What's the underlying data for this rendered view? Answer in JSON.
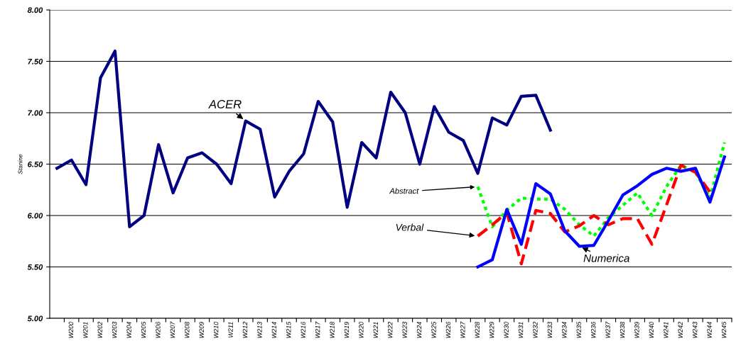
{
  "chart_data": {
    "type": "line",
    "ylabel": "Stanine",
    "categories": [
      null,
      "W200",
      "W201",
      "W202",
      "W203",
      "W204",
      "W205",
      "W206",
      "W207",
      "W208",
      "W209",
      "W210",
      "W211",
      "W212",
      "W213",
      "W214",
      "W215",
      "W216",
      "W217",
      "W218",
      "W219",
      "W220",
      "W221",
      "W222",
      "W223",
      "W224",
      "W225",
      "W226",
      "W227",
      "W228",
      "W229",
      "W230",
      "W231",
      "W232",
      "W233",
      "W234",
      "W235",
      "W236",
      "W237",
      "W238",
      "W239",
      "W240",
      "W241",
      "W242",
      "W243",
      "W244",
      "W245"
    ],
    "series": [
      {
        "name": "ACER",
        "color": "#000080",
        "line_style": "solid",
        "values": [
          6.46,
          6.54,
          6.3,
          7.34,
          7.6,
          5.89,
          6.0,
          6.69,
          6.22,
          6.56,
          6.61,
          6.5,
          6.31,
          6.92,
          6.84,
          6.18,
          6.43,
          6.6,
          7.11,
          6.91,
          6.08,
          6.71,
          6.56,
          7.2,
          7.0,
          6.5,
          7.06,
          6.81,
          6.73,
          6.41,
          6.95,
          6.88,
          7.16,
          7.17,
          6.83,
          null,
          null,
          null,
          null,
          null,
          null,
          null,
          null,
          null,
          null,
          null,
          null
        ]
      },
      {
        "name": "Abstract",
        "color": "#00ff00",
        "line_style": "dotted",
        "values": [
          null,
          null,
          null,
          null,
          null,
          null,
          null,
          null,
          null,
          null,
          null,
          null,
          null,
          null,
          null,
          null,
          null,
          null,
          null,
          null,
          null,
          null,
          null,
          null,
          null,
          null,
          null,
          null,
          null,
          6.28,
          5.89,
          6.05,
          6.17,
          6.16,
          6.16,
          6.06,
          5.91,
          5.8,
          5.98,
          6.1,
          6.22,
          6.0,
          6.28,
          6.49,
          6.42,
          6.17,
          6.71
        ]
      },
      {
        "name": "Verbal",
        "color": "#ff0000",
        "line_style": "dashed",
        "values": [
          null,
          null,
          null,
          null,
          null,
          null,
          null,
          null,
          null,
          null,
          null,
          null,
          null,
          null,
          null,
          null,
          null,
          null,
          null,
          null,
          null,
          null,
          null,
          null,
          null,
          null,
          null,
          null,
          null,
          5.8,
          5.91,
          6.03,
          5.53,
          6.05,
          6.02,
          5.84,
          5.9,
          6.0,
          5.91,
          5.97,
          5.97,
          5.72,
          6.1,
          6.49,
          6.42,
          6.23,
          null
        ]
      },
      {
        "name": "Numerica",
        "color": "#0000ff",
        "line_style": "solid",
        "values": [
          null,
          null,
          null,
          null,
          null,
          null,
          null,
          null,
          null,
          null,
          null,
          null,
          null,
          null,
          null,
          null,
          null,
          null,
          null,
          null,
          null,
          null,
          null,
          null,
          null,
          null,
          null,
          null,
          null,
          5.5,
          5.57,
          6.06,
          5.72,
          6.31,
          6.21,
          5.85,
          5.7,
          5.71,
          5.95,
          6.2,
          6.29,
          6.4,
          6.46,
          6.43,
          6.46,
          6.13,
          6.57
        ]
      }
    ],
    "ylim": [
      5.0,
      8.0
    ],
    "yticks": [
      {
        "value": 5.0,
        "label": "5.00"
      },
      {
        "value": 5.5,
        "label": "5.50"
      },
      {
        "value": 6.0,
        "label": "6.00"
      },
      {
        "value": 6.5,
        "label": "6.50"
      },
      {
        "value": 7.0,
        "label": "7.00"
      },
      {
        "value": 7.5,
        "label": "7.50"
      },
      {
        "value": 8.0,
        "label": "8.00"
      }
    ],
    "grid": "y",
    "legend": false,
    "marker": "none"
  }
}
